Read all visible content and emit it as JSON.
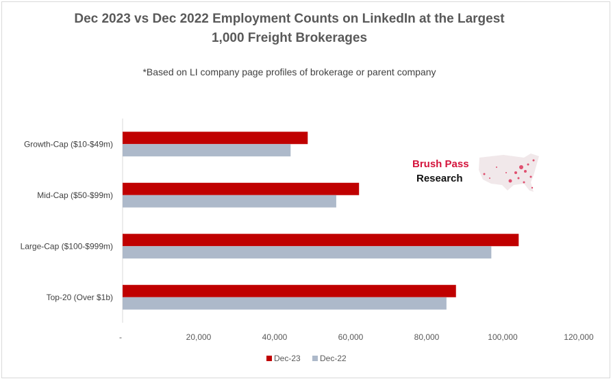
{
  "chart_data": {
    "type": "bar",
    "orientation": "horizontal",
    "title": "Dec 2023 vs Dec 2022 Employment Counts on LinkedIn at the Largest 1,000 Freight Brokerages",
    "title_lines": [
      "Dec 2023 vs Dec 2022 Employment Counts on LinkedIn at the Largest",
      "1,000 Freight Brokerages"
    ],
    "subtitle": "*Based on LI company page profiles of brokerage or parent company",
    "categories": [
      "Growth-Cap ($10-$49m)",
      "Mid-Cap ($50-$99m)",
      "Large-Cap ($100-$999m)",
      "Top-20 (Over $1b)"
    ],
    "series": [
      {
        "name": "Dec-23",
        "color": "#c00000",
        "values": [
          48700,
          62200,
          104200,
          87700
        ]
      },
      {
        "name": "Dec-22",
        "color": "#adb9ca",
        "values": [
          44200,
          56200,
          97000,
          85200
        ]
      }
    ],
    "xlim": [
      0,
      120000
    ],
    "xticks": [
      0,
      20000,
      40000,
      60000,
      80000,
      100000,
      120000
    ],
    "xtick_labels": [
      "-",
      "20,000",
      "40,000",
      "60,000",
      "80,000",
      "100,000",
      "120,000"
    ],
    "grid": false,
    "legend": "bottom"
  },
  "logo": {
    "line1": "Brush Pass",
    "line2": "Research"
  }
}
